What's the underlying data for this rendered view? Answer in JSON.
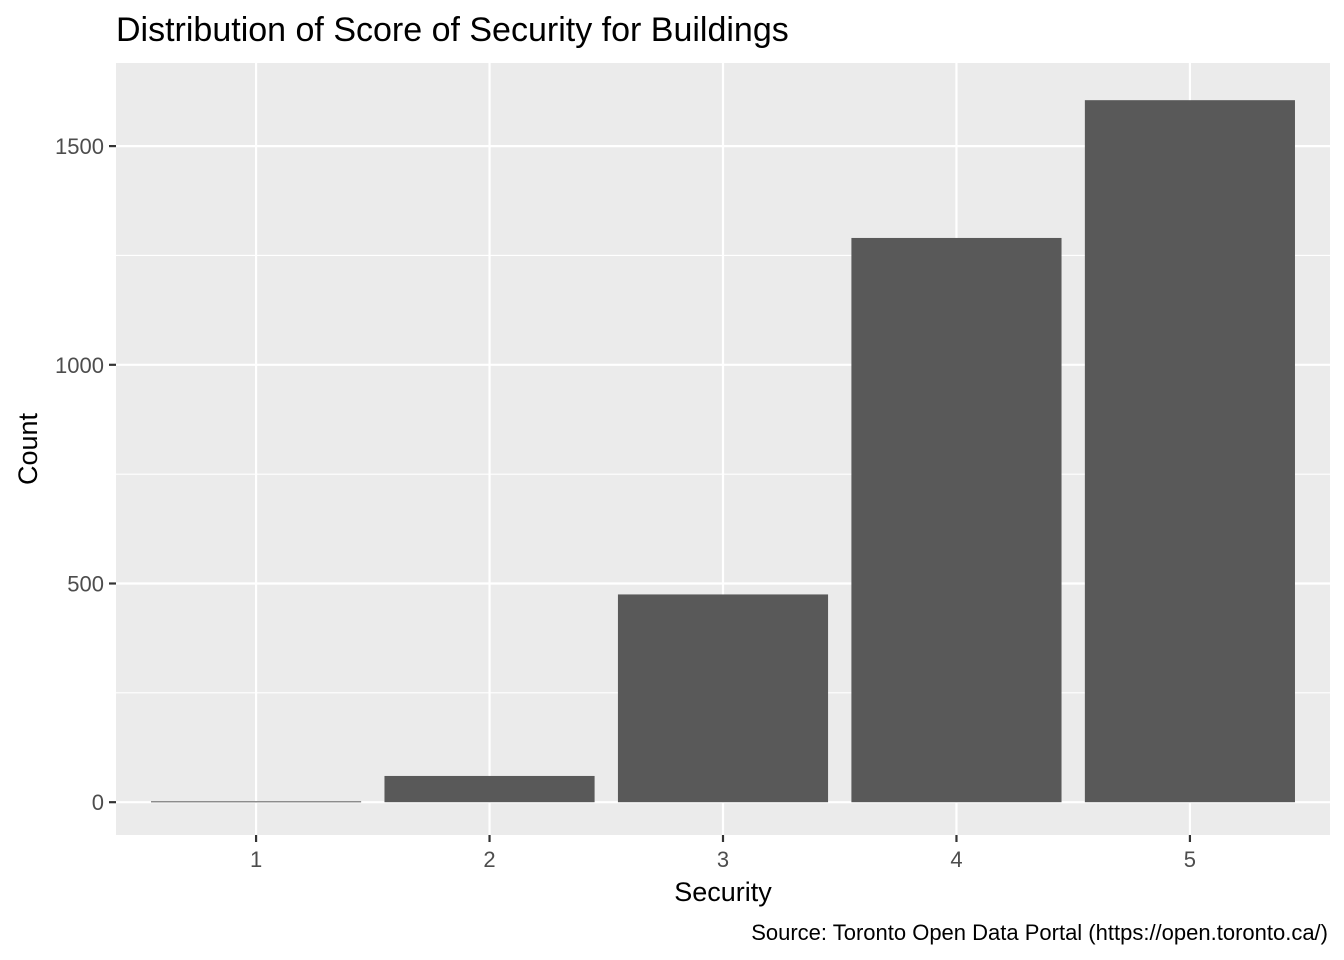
{
  "chart_data": {
    "type": "bar",
    "title": "Distribution of Score of Security for Buildings",
    "xlabel": "Security",
    "ylabel": "Count",
    "caption": "Source: Toronto Open Data Portal (https://open.toronto.ca/)",
    "categories": [
      "1",
      "2",
      "3",
      "4",
      "5"
    ],
    "values": [
      2,
      60,
      475,
      1290,
      1605
    ],
    "ylim": [
      -75,
      1690
    ],
    "yticks": [
      0,
      500,
      1000,
      1500
    ],
    "yticks_minor": [
      250,
      750,
      1250
    ],
    "grid": true,
    "legend": "none",
    "colors": {
      "panel_background": "#ebebeb",
      "grid": "#ffffff",
      "bar_fill": "#595959",
      "tick_label": "#4d4d4d",
      "text": "#000000"
    }
  }
}
